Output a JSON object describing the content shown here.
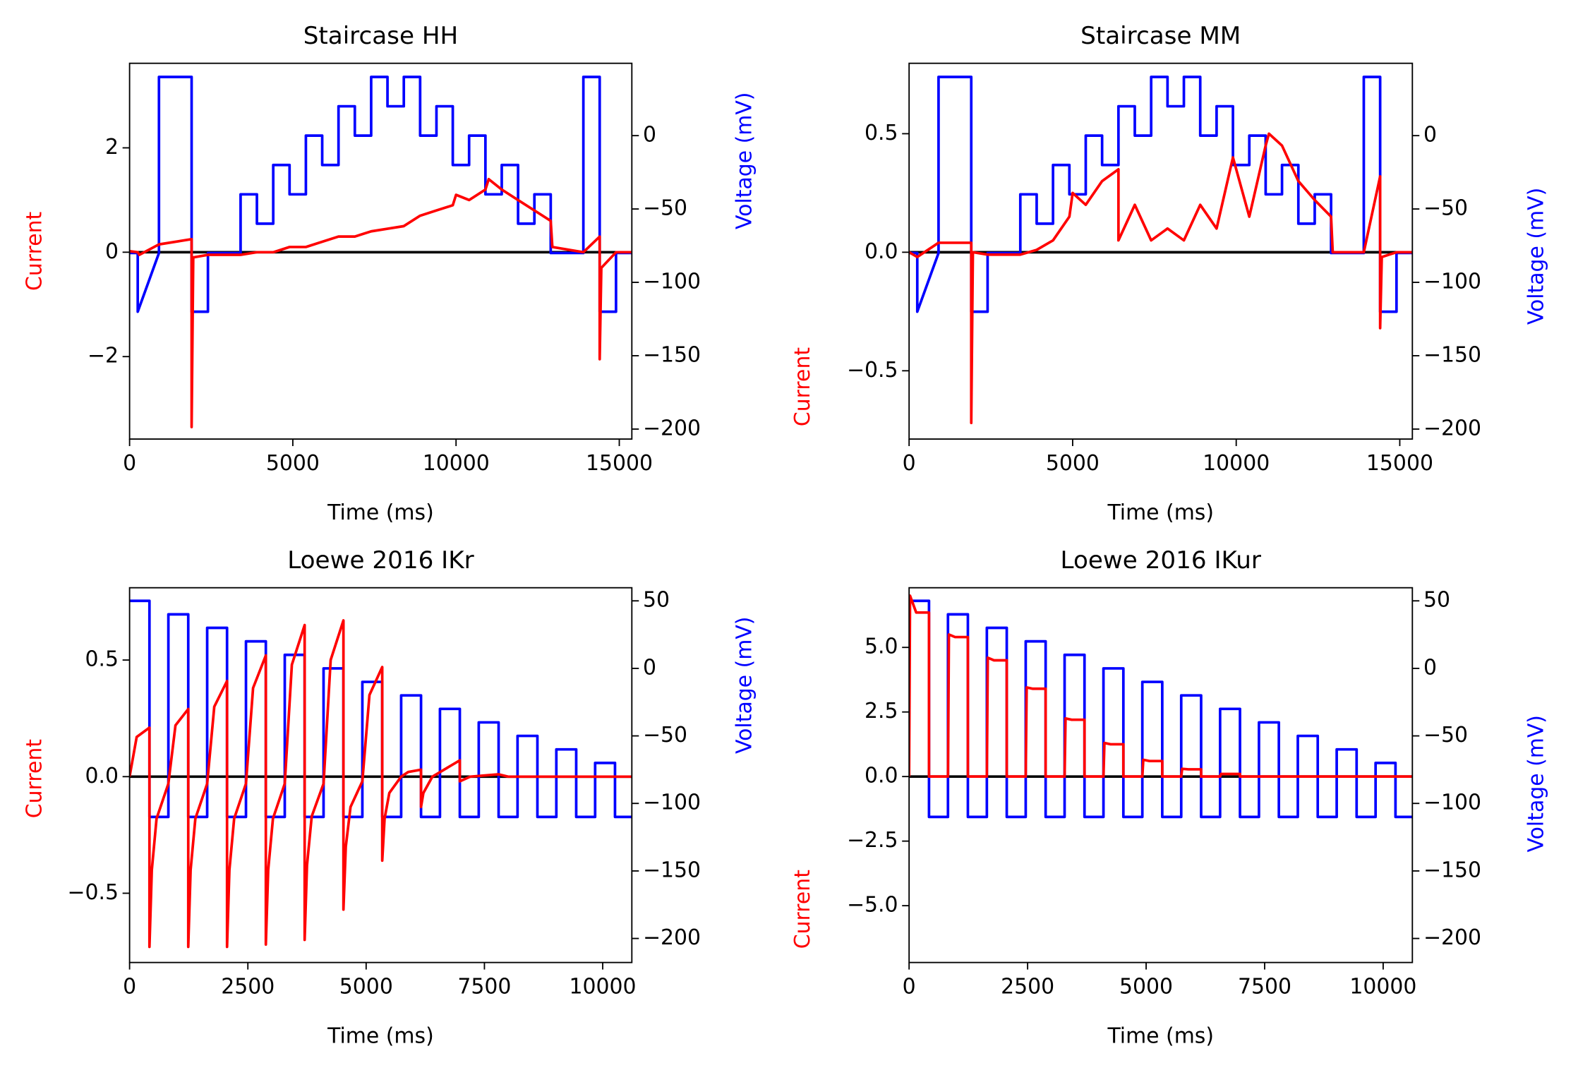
{
  "chart_data": [
    {
      "type": "line",
      "title": "Staircase HH",
      "xlabel": "Time (ms)",
      "ylabel": "Current",
      "y2label": "Voltage (mV)",
      "xlim": [
        0,
        15385
      ],
      "xticks": [
        0,
        5000,
        10000,
        15000
      ],
      "ylim": [
        -3.58,
        3.62
      ],
      "yticks": [
        {
          "value": -2,
          "label": "−2"
        },
        0,
        2
      ],
      "y2lim": [
        -206.8,
        49.3
      ],
      "y2ticks": [
        {
          "value": -200,
          "label": "−200"
        },
        {
          "value": -150,
          "label": "−150"
        },
        {
          "value": -100,
          "label": "−100"
        },
        {
          "value": -50,
          "label": "−50"
        },
        0
      ],
      "hline": 0,
      "hline_color": "#000000",
      "series": [
        {
          "color": "#0000ff",
          "axis": "y2",
          "x": [
            0,
            250,
            250,
            900,
            900,
            1900,
            1900,
            2400,
            2400,
            3400,
            3400,
            3900,
            3900,
            4400,
            4400,
            4900,
            4900,
            5400,
            5400,
            5900,
            5900,
            6400,
            6400,
            6900,
            6900,
            7400,
            7400,
            7900,
            7900,
            8400,
            8400,
            8900,
            8900,
            9400,
            9400,
            9900,
            9900,
            10400,
            10400,
            10900,
            10900,
            11400,
            11400,
            11900,
            11900,
            12400,
            12400,
            12900,
            12900,
            13900,
            13900,
            14400,
            14400,
            14900,
            14900,
            15385
          ],
          "values": [
            -80,
            -80,
            -120,
            -80,
            40,
            40,
            -120,
            -120,
            -80,
            -80,
            -40,
            -40,
            -60,
            -60,
            -20,
            -20,
            -40,
            -40,
            0,
            0,
            -20,
            -20,
            20,
            20,
            0,
            0,
            40,
            40,
            20,
            20,
            40,
            40,
            0,
            0,
            20,
            20,
            -20,
            -20,
            0,
            0,
            -40,
            -40,
            -20,
            -20,
            -60,
            -60,
            -40,
            -40,
            -80,
            -80,
            40,
            40,
            -120,
            -120,
            -80,
            -80
          ]
        },
        {
          "color": "#ff0000",
          "x": [
            0,
            250,
            300,
            900,
            1900,
            1900,
            1950,
            2400,
            3400,
            3900,
            4400,
            4900,
            5400,
            5900,
            6400,
            6900,
            7400,
            7900,
            8400,
            8900,
            9400,
            9900,
            10000,
            10400,
            10900,
            11000,
            11400,
            11900,
            12400,
            12900,
            12950,
            13900,
            14400,
            14400,
            14450,
            14900,
            15385
          ],
          "values": [
            0.02,
            0,
            -0.05,
            0.15,
            0.25,
            -3.35,
            -0.1,
            -0.05,
            -0.05,
            0,
            0,
            0.1,
            0.1,
            0.2,
            0.3,
            0.3,
            0.4,
            0.45,
            0.5,
            0.7,
            0.8,
            0.9,
            1.1,
            1.0,
            1.2,
            1.4,
            1.2,
            1.0,
            0.8,
            0.6,
            0.1,
            0,
            0.3,
            -2.05,
            -0.3,
            0,
            0
          ]
        }
      ]
    },
    {
      "type": "line",
      "title": "Staircase MM",
      "xlabel": "Time (ms)",
      "ylabel": "Current",
      "y2label": "Voltage (mV)",
      "xlim": [
        0,
        15385
      ],
      "xticks": [
        0,
        5000,
        10000,
        15000
      ],
      "ylim": [
        -0.788,
        0.797
      ],
      "yticks": [
        {
          "value": -0.5,
          "label": "−0.5"
        },
        {
          "value": 0,
          "label": "0.0"
        },
        0.5
      ],
      "y2lim": [
        -206.8,
        49.3
      ],
      "y2ticks": [
        {
          "value": -200,
          "label": "−200"
        },
        {
          "value": -150,
          "label": "−150"
        },
        {
          "value": -100,
          "label": "−100"
        },
        {
          "value": -50,
          "label": "−50"
        },
        0
      ],
      "hline": 0,
      "hline_color": "#000000",
      "series": [
        {
          "color": "#0000ff",
          "axis": "y2",
          "x": [
            0,
            250,
            250,
            900,
            900,
            1900,
            1900,
            2400,
            2400,
            3400,
            3400,
            3900,
            3900,
            4400,
            4400,
            4900,
            4900,
            5400,
            5400,
            5900,
            5900,
            6400,
            6400,
            6900,
            6900,
            7400,
            7400,
            7900,
            7900,
            8400,
            8400,
            8900,
            8900,
            9400,
            9400,
            9900,
            9900,
            10400,
            10400,
            10900,
            10900,
            11400,
            11400,
            11900,
            11900,
            12400,
            12400,
            12900,
            12900,
            13900,
            13900,
            14400,
            14400,
            14900,
            14900,
            15385
          ],
          "values": [
            -80,
            -80,
            -120,
            -80,
            40,
            40,
            -120,
            -120,
            -80,
            -80,
            -40,
            -40,
            -60,
            -60,
            -20,
            -20,
            -40,
            -40,
            0,
            0,
            -20,
            -20,
            20,
            20,
            0,
            0,
            40,
            40,
            20,
            20,
            40,
            40,
            0,
            0,
            20,
            20,
            -20,
            -20,
            0,
            0,
            -40,
            -40,
            -20,
            -20,
            -60,
            -60,
            -40,
            -40,
            -80,
            -80,
            40,
            40,
            -120,
            -120,
            -80,
            -80
          ]
        },
        {
          "color": "#ff0000",
          "x": [
            0,
            250,
            900,
            1900,
            1900,
            1950,
            2400,
            3400,
            3900,
            4400,
            4900,
            5000,
            5400,
            5900,
            6400,
            6400,
            6900,
            7400,
            7900,
            8400,
            8900,
            9400,
            9900,
            10400,
            10900,
            11000,
            11400,
            11900,
            12400,
            12900,
            12950,
            13900,
            14400,
            14400,
            14450,
            14900,
            15385
          ],
          "values": [
            0,
            -0.02,
            0.04,
            0.04,
            -0.72,
            0,
            -0.01,
            -0.01,
            0.01,
            0.05,
            0.15,
            0.25,
            0.2,
            0.3,
            0.35,
            0.05,
            0.2,
            0.05,
            0.1,
            0.05,
            0.2,
            0.1,
            0.4,
            0.15,
            0.45,
            0.5,
            0.45,
            0.3,
            0.22,
            0.15,
            0,
            0,
            0.32,
            -0.32,
            -0.02,
            0,
            0
          ]
        }
      ]
    },
    {
      "type": "line",
      "title": "Loewe 2016 IKr",
      "xlabel": "Time (ms)",
      "ylabel": "Current",
      "y2label": "Voltage (mV)",
      "xlim": [
        0,
        10616
      ],
      "xticks": [
        0,
        2500,
        5000,
        7500,
        10000
      ],
      "ylim": [
        -0.797,
        0.81
      ],
      "yticks": [
        {
          "value": -0.5,
          "label": "−0.5"
        },
        {
          "value": 0,
          "label": "0.0"
        },
        0.5
      ],
      "y2lim": [
        -217.8,
        59.7
      ],
      "y2ticks": [
        {
          "value": -200,
          "label": "−200"
        },
        {
          "value": -150,
          "label": "−150"
        },
        {
          "value": -100,
          "label": "−100"
        },
        {
          "value": -50,
          "label": "−50"
        },
        0,
        50
      ],
      "hline": 0,
      "hline_color": "#000000",
      "series": [
        {
          "color": "#0000ff",
          "axis": "y2",
          "x": [
            0,
            420,
            420,
            820,
            820,
            1240,
            1240,
            1640,
            1640,
            2060,
            2060,
            2460,
            2460,
            2880,
            2880,
            3280,
            3280,
            3700,
            3700,
            4100,
            4100,
            4520,
            4520,
            4920,
            4920,
            5340,
            5340,
            5740,
            5740,
            6160,
            6160,
            6560,
            6560,
            6980,
            6980,
            7380,
            7380,
            7800,
            7800,
            8200,
            8200,
            8620,
            8620,
            9020,
            9020,
            9440,
            9440,
            9840,
            9840,
            10260,
            10260,
            10616
          ],
          "values": [
            50,
            50,
            -110,
            -110,
            40,
            40,
            -110,
            -110,
            30,
            30,
            -110,
            -110,
            20,
            20,
            -110,
            -110,
            10,
            10,
            -110,
            -110,
            0,
            0,
            -110,
            -110,
            -10,
            -10,
            -110,
            -110,
            -20,
            -20,
            -110,
            -110,
            -30,
            -30,
            -110,
            -110,
            -40,
            -40,
            -110,
            -110,
            -50,
            -50,
            -110,
            -110,
            -60,
            -60,
            -110,
            -110,
            -70,
            -70,
            -110,
            -110
          ]
        },
        {
          "color": "#ff0000",
          "x": [
            0,
            150,
            420,
            420,
            470,
            570,
            820,
            970,
            1240,
            1240,
            1290,
            1390,
            1640,
            1790,
            2060,
            2060,
            2110,
            2210,
            2460,
            2610,
            2880,
            2880,
            2930,
            3030,
            3280,
            3430,
            3700,
            3700,
            3750,
            3850,
            4100,
            4250,
            4520,
            4520,
            4570,
            4670,
            4920,
            5070,
            5340,
            5340,
            5390,
            5490,
            5740,
            5890,
            6160,
            6160,
            6210,
            6400,
            6980,
            6980,
            7200,
            7800,
            8000,
            10616
          ],
          "values": [
            0,
            0.17,
            0.21,
            -0.73,
            -0.4,
            -0.18,
            -0.03,
            0.22,
            0.29,
            -0.73,
            -0.4,
            -0.18,
            -0.03,
            0.3,
            0.41,
            -0.73,
            -0.4,
            -0.18,
            -0.03,
            0.38,
            0.52,
            -0.72,
            -0.4,
            -0.18,
            -0.03,
            0.48,
            0.65,
            -0.7,
            -0.38,
            -0.17,
            -0.03,
            0.5,
            0.67,
            -0.57,
            -0.3,
            -0.13,
            -0.02,
            0.35,
            0.47,
            -0.36,
            -0.18,
            -0.07,
            0,
            0.02,
            0.03,
            -0.13,
            -0.07,
            0,
            0.07,
            -0.02,
            0,
            0.01,
            0,
            0
          ]
        }
      ]
    },
    {
      "type": "line",
      "title": "Loewe 2016 IKur",
      "xlabel": "Time (ms)",
      "ylabel": "Current",
      "y2label": "Voltage (mV)",
      "xlim": [
        0,
        10616
      ],
      "xticks": [
        0,
        2500,
        5000,
        7500,
        10000
      ],
      "ylim": [
        -7.2,
        7.31
      ],
      "yticks": [
        {
          "value": -5,
          "label": "−5.0"
        },
        {
          "value": -2.5,
          "label": "−2.5"
        },
        {
          "value": 0,
          "label": "0.0"
        },
        2.5,
        {
          "value": 5,
          "label": "5.0"
        }
      ],
      "y2lim": [
        -217.8,
        59.7
      ],
      "y2ticks": [
        {
          "value": -200,
          "label": "−200"
        },
        {
          "value": -150,
          "label": "−150"
        },
        {
          "value": -100,
          "label": "−100"
        },
        {
          "value": -50,
          "label": "−50"
        },
        0,
        50
      ],
      "hline": 0,
      "hline_color": "#000000",
      "series": [
        {
          "color": "#0000ff",
          "axis": "y2",
          "x": [
            0,
            420,
            420,
            820,
            820,
            1240,
            1240,
            1640,
            1640,
            2060,
            2060,
            2460,
            2460,
            2880,
            2880,
            3280,
            3280,
            3700,
            3700,
            4100,
            4100,
            4520,
            4520,
            4920,
            4920,
            5340,
            5340,
            5740,
            5740,
            6160,
            6160,
            6560,
            6560,
            6980,
            6980,
            7380,
            7380,
            7800,
            7800,
            8200,
            8200,
            8620,
            8620,
            9020,
            9020,
            9440,
            9440,
            9840,
            9840,
            10260,
            10260,
            10616
          ],
          "values": [
            50,
            50,
            -110,
            -110,
            40,
            40,
            -110,
            -110,
            30,
            30,
            -110,
            -110,
            20,
            20,
            -110,
            -110,
            10,
            10,
            -110,
            -110,
            0,
            0,
            -110,
            -110,
            -10,
            -10,
            -110,
            -110,
            -20,
            -20,
            -110,
            -110,
            -30,
            -30,
            -110,
            -110,
            -40,
            -40,
            -110,
            -110,
            -50,
            -50,
            -110,
            -110,
            -60,
            -60,
            -110,
            -110,
            -70,
            -70,
            -110,
            -110
          ]
        },
        {
          "color": "#ff0000",
          "x": [
            0,
            20,
            150,
            420,
            420,
            820,
            840,
            970,
            1240,
            1240,
            1640,
            1660,
            1790,
            2060,
            2060,
            2460,
            2480,
            2610,
            2880,
            2880,
            3280,
            3300,
            3430,
            3700,
            3700,
            4100,
            4120,
            4250,
            4520,
            4520,
            4920,
            4940,
            5070,
            5340,
            5340,
            5740,
            5760,
            5890,
            6160,
            6160,
            6560,
            6580,
            6710,
            6980,
            6980,
            10616
          ],
          "values": [
            0,
            7.0,
            6.35,
            6.35,
            0,
            0,
            5.5,
            5.4,
            5.4,
            0,
            0,
            4.6,
            4.5,
            4.5,
            0,
            0,
            3.45,
            3.4,
            3.4,
            0,
            0,
            2.25,
            2.2,
            2.2,
            0,
            0,
            1.3,
            1.25,
            1.25,
            0,
            0,
            0.65,
            0.6,
            0.6,
            0,
            0,
            0.3,
            0.28,
            0.28,
            0,
            0,
            0.1,
            0.1,
            0.1,
            0,
            0
          ]
        }
      ]
    }
  ]
}
